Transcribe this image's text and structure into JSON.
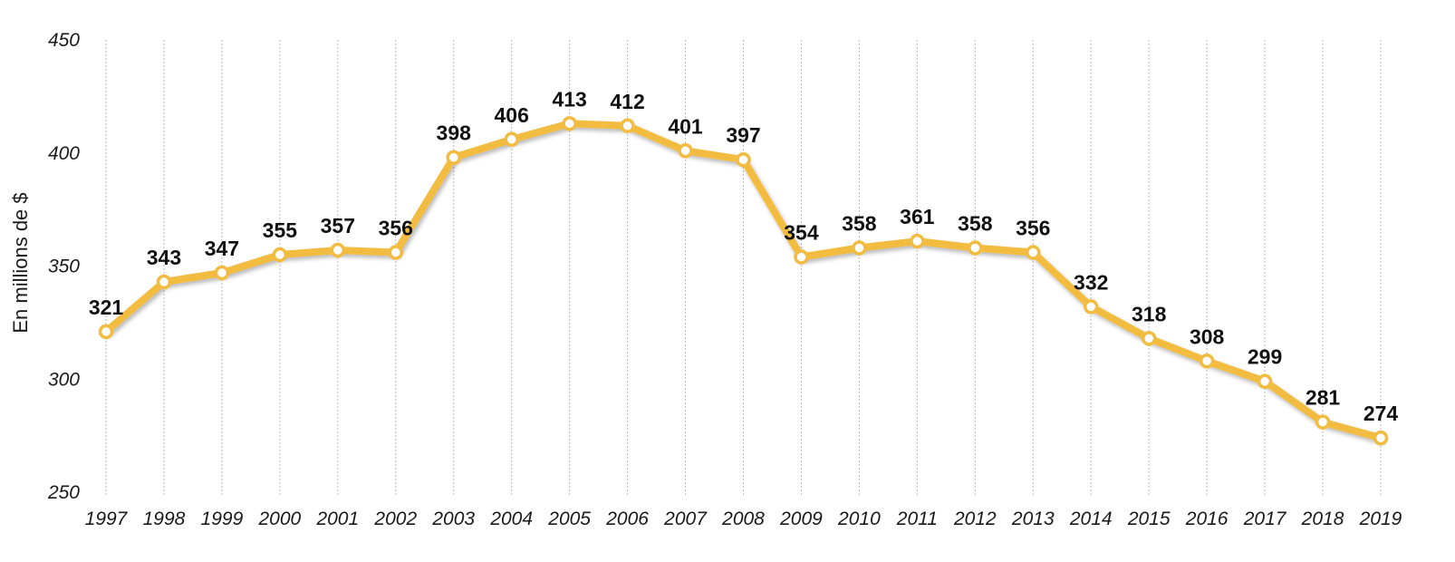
{
  "chart_data": {
    "type": "line",
    "title": "",
    "xlabel": "",
    "ylabel": "En millions de $",
    "ylim": [
      250,
      450
    ],
    "yticks": [
      250,
      300,
      350,
      400,
      450
    ],
    "grid": "vertical-dotted",
    "legend": "none",
    "line_color": "#F2BC41",
    "x": [
      "1997",
      "1998",
      "1999",
      "2000",
      "2001",
      "2002",
      "2003",
      "2004",
      "2005",
      "2006",
      "2007",
      "2008",
      "2009",
      "2010",
      "2011",
      "2012",
      "2013",
      "2014",
      "2015",
      "2016",
      "2017",
      "2018",
      "2019"
    ],
    "series": [
      {
        "values": [
          321,
          343,
          347,
          355,
          357,
          356,
          398,
          406,
          413,
          412,
          401,
          397,
          354,
          358,
          361,
          358,
          356,
          332,
          318,
          308,
          299,
          281,
          274
        ]
      }
    ]
  }
}
